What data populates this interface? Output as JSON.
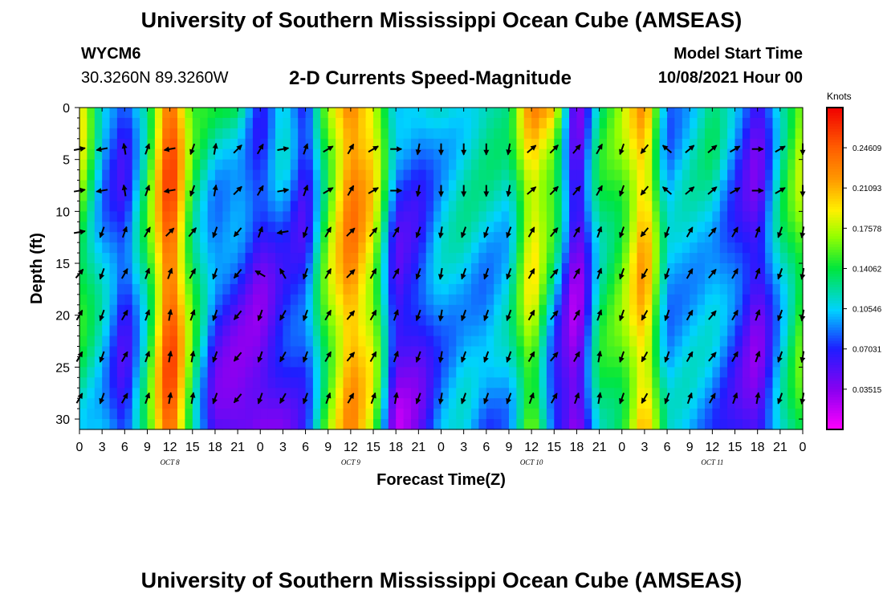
{
  "header": {
    "title": "University of Southern Mississippi Ocean Cube (AMSEAS)",
    "footer_title": "University of Southern Mississippi Ocean Cube (AMSEAS)",
    "station_id": "WYCM6",
    "station_coords": "30.3260N  89.3260W",
    "plot_title": "2-D Currents Speed-Magnitude",
    "model_start_label": "Model Start Time",
    "model_start_value": "10/08/2021 Hour 00"
  },
  "chart_data": {
    "type": "heatmap",
    "title": "2-D Currents Speed-Magnitude",
    "xlabel": "Forecast Time(Z)",
    "ylabel": "Depth (ft)",
    "xlim": [
      0,
      96
    ],
    "ylim": [
      0,
      31
    ],
    "x_tick_labels": [
      "0",
      "3",
      "6",
      "9",
      "12",
      "15",
      "18",
      "21",
      "0",
      "3",
      "6",
      "9",
      "12",
      "15",
      "18",
      "21",
      "0",
      "3",
      "6",
      "9",
      "12",
      "15",
      "18",
      "21",
      "0",
      "3",
      "6",
      "9",
      "12",
      "15",
      "18",
      "21",
      "0"
    ],
    "y_ticks": [
      0,
      5,
      10,
      15,
      20,
      25,
      30
    ],
    "day_labels": [
      {
        "text": "OCT 8",
        "hour": 12
      },
      {
        "text": "OCT 9",
        "hour": 36
      },
      {
        "text": "OCT 10",
        "hour": 60
      },
      {
        "text": "OCT 11",
        "hour": 84
      }
    ],
    "colorbar": {
      "units": "Knots",
      "min": 0.0,
      "max": 0.2812,
      "tick_values": [
        0.24609,
        0.21093,
        0.17578,
        0.14062,
        0.10546,
        0.07031,
        0.03515
      ],
      "tick_labels": [
        "0.24609",
        "0.21093",
        "0.17578",
        "0.14062",
        "0.10546",
        "0.07031",
        "0.03515"
      ]
    },
    "speed_by_hour_near_surface": [
      0.2,
      0.09,
      0.07,
      0.14,
      0.26,
      0.14,
      0.13,
      0.14,
      0.08,
      0.12,
      0.05,
      0.16,
      0.24,
      0.2,
      0.1,
      0.09,
      0.11,
      0.12,
      0.13,
      0.12,
      0.22,
      0.21,
      0.04,
      0.13,
      0.16,
      0.22,
      0.09,
      0.11,
      0.13,
      0.09,
      0.05,
      0.13,
      0.18
    ],
    "speed_by_hour_bottom": [
      0.12,
      0.11,
      0.06,
      0.13,
      0.26,
      0.14,
      0.05,
      0.03,
      0.03,
      0.05,
      0.08,
      0.16,
      0.22,
      0.17,
      0.03,
      0.05,
      0.09,
      0.1,
      0.08,
      0.1,
      0.17,
      0.06,
      0.02,
      0.13,
      0.15,
      0.21,
      0.1,
      0.1,
      0.09,
      0.07,
      0.04,
      0.1,
      0.15
    ],
    "vector_depths": [
      4,
      8,
      12,
      16,
      20,
      24,
      28
    ],
    "vector_directions_deg": [
      [
        80,
        260,
        350,
        20,
        260,
        200,
        10,
        45,
        30,
        80,
        20,
        60,
        30,
        60,
        90,
        190,
        180,
        180,
        180,
        190,
        50,
        45,
        40,
        30,
        200,
        220,
        310,
        50,
        50,
        60,
        90,
        60,
        180
      ],
      [
        80,
        260,
        350,
        20,
        260,
        200,
        10,
        45,
        30,
        80,
        20,
        60,
        30,
        60,
        90,
        190,
        180,
        180,
        180,
        190,
        50,
        45,
        40,
        30,
        200,
        220,
        310,
        50,
        50,
        60,
        90,
        60,
        180
      ],
      [
        80,
        200,
        20,
        30,
        45,
        40,
        200,
        220,
        20,
        260,
        200,
        30,
        45,
        40,
        30,
        200,
        190,
        200,
        200,
        200,
        30,
        40,
        30,
        20,
        200,
        220,
        200,
        30,
        40,
        30,
        20,
        200,
        190
      ],
      [
        40,
        200,
        30,
        20,
        20,
        30,
        200,
        220,
        300,
        330,
        200,
        30,
        45,
        30,
        30,
        200,
        190,
        200,
        200,
        200,
        30,
        40,
        30,
        20,
        200,
        210,
        200,
        30,
        40,
        30,
        20,
        200,
        190
      ],
      [
        30,
        200,
        30,
        20,
        10,
        20,
        200,
        220,
        200,
        210,
        200,
        30,
        40,
        30,
        20,
        200,
        190,
        200,
        200,
        200,
        30,
        40,
        30,
        20,
        200,
        210,
        200,
        30,
        40,
        30,
        20,
        200,
        190
      ],
      [
        30,
        200,
        30,
        20,
        10,
        10,
        200,
        220,
        200,
        210,
        200,
        30,
        40,
        30,
        20,
        200,
        190,
        200,
        200,
        200,
        30,
        40,
        30,
        10,
        200,
        210,
        200,
        30,
        40,
        30,
        20,
        200,
        190
      ],
      [
        30,
        200,
        30,
        20,
        10,
        10,
        200,
        220,
        200,
        210,
        200,
        20,
        30,
        20,
        10,
        200,
        190,
        200,
        200,
        200,
        20,
        30,
        20,
        10,
        200,
        210,
        200,
        20,
        30,
        20,
        10,
        200,
        190
      ]
    ]
  }
}
